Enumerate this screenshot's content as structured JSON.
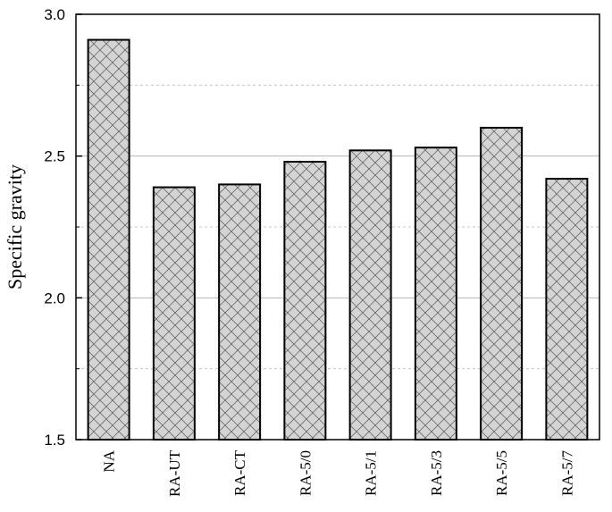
{
  "chart_data": {
    "type": "bar",
    "title": "",
    "xlabel": "",
    "ylabel": "Specific gravity",
    "ylim": [
      1.5,
      3.0
    ],
    "y_major_ticks": [
      "1.5",
      "2.0",
      "2.5",
      "3.0"
    ],
    "y_major_values": [
      1.5,
      2.0,
      2.5,
      3.0
    ],
    "y_minor_gridlines": [
      1.75,
      2.25,
      2.75
    ],
    "grid": true,
    "categories": [
      "NA",
      "RA-UT",
      "RA-CT",
      "RA-5/0",
      "RA-5/1",
      "RA-5/3",
      "RA-5/5",
      "RA-5/7"
    ],
    "values": [
      2.91,
      2.39,
      2.4,
      2.48,
      2.52,
      2.53,
      2.6,
      2.42
    ],
    "bar_fill": "#d4d4d4",
    "bar_hatch_color": "#555555",
    "bar_stroke": "#000000"
  }
}
